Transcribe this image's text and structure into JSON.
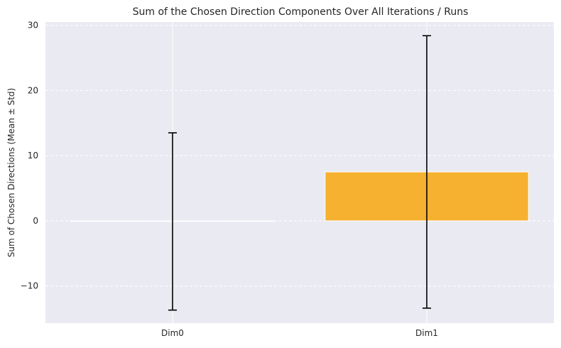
{
  "chart_data": {
    "type": "bar",
    "title": "Sum of the Chosen Direction Components Over All Iterations / Runs",
    "xlabel": "",
    "ylabel": "Sum of Chosen Directions (Mean ± Std)",
    "categories": [
      "Dim0",
      "Dim1"
    ],
    "values": [
      -0.1,
      7.5
    ],
    "errors": [
      13.6,
      20.9
    ],
    "ylim": [
      -15.7,
      30.5
    ],
    "yticks": [
      -10,
      0,
      10,
      20,
      30
    ],
    "ytick_labels": [
      "−10",
      "0",
      "10",
      "20",
      "30"
    ],
    "grid": true,
    "colors": {
      "background": "#eaeaf2",
      "bar": "#f7b130",
      "grid": "#ffffff",
      "error": "#000000"
    }
  }
}
